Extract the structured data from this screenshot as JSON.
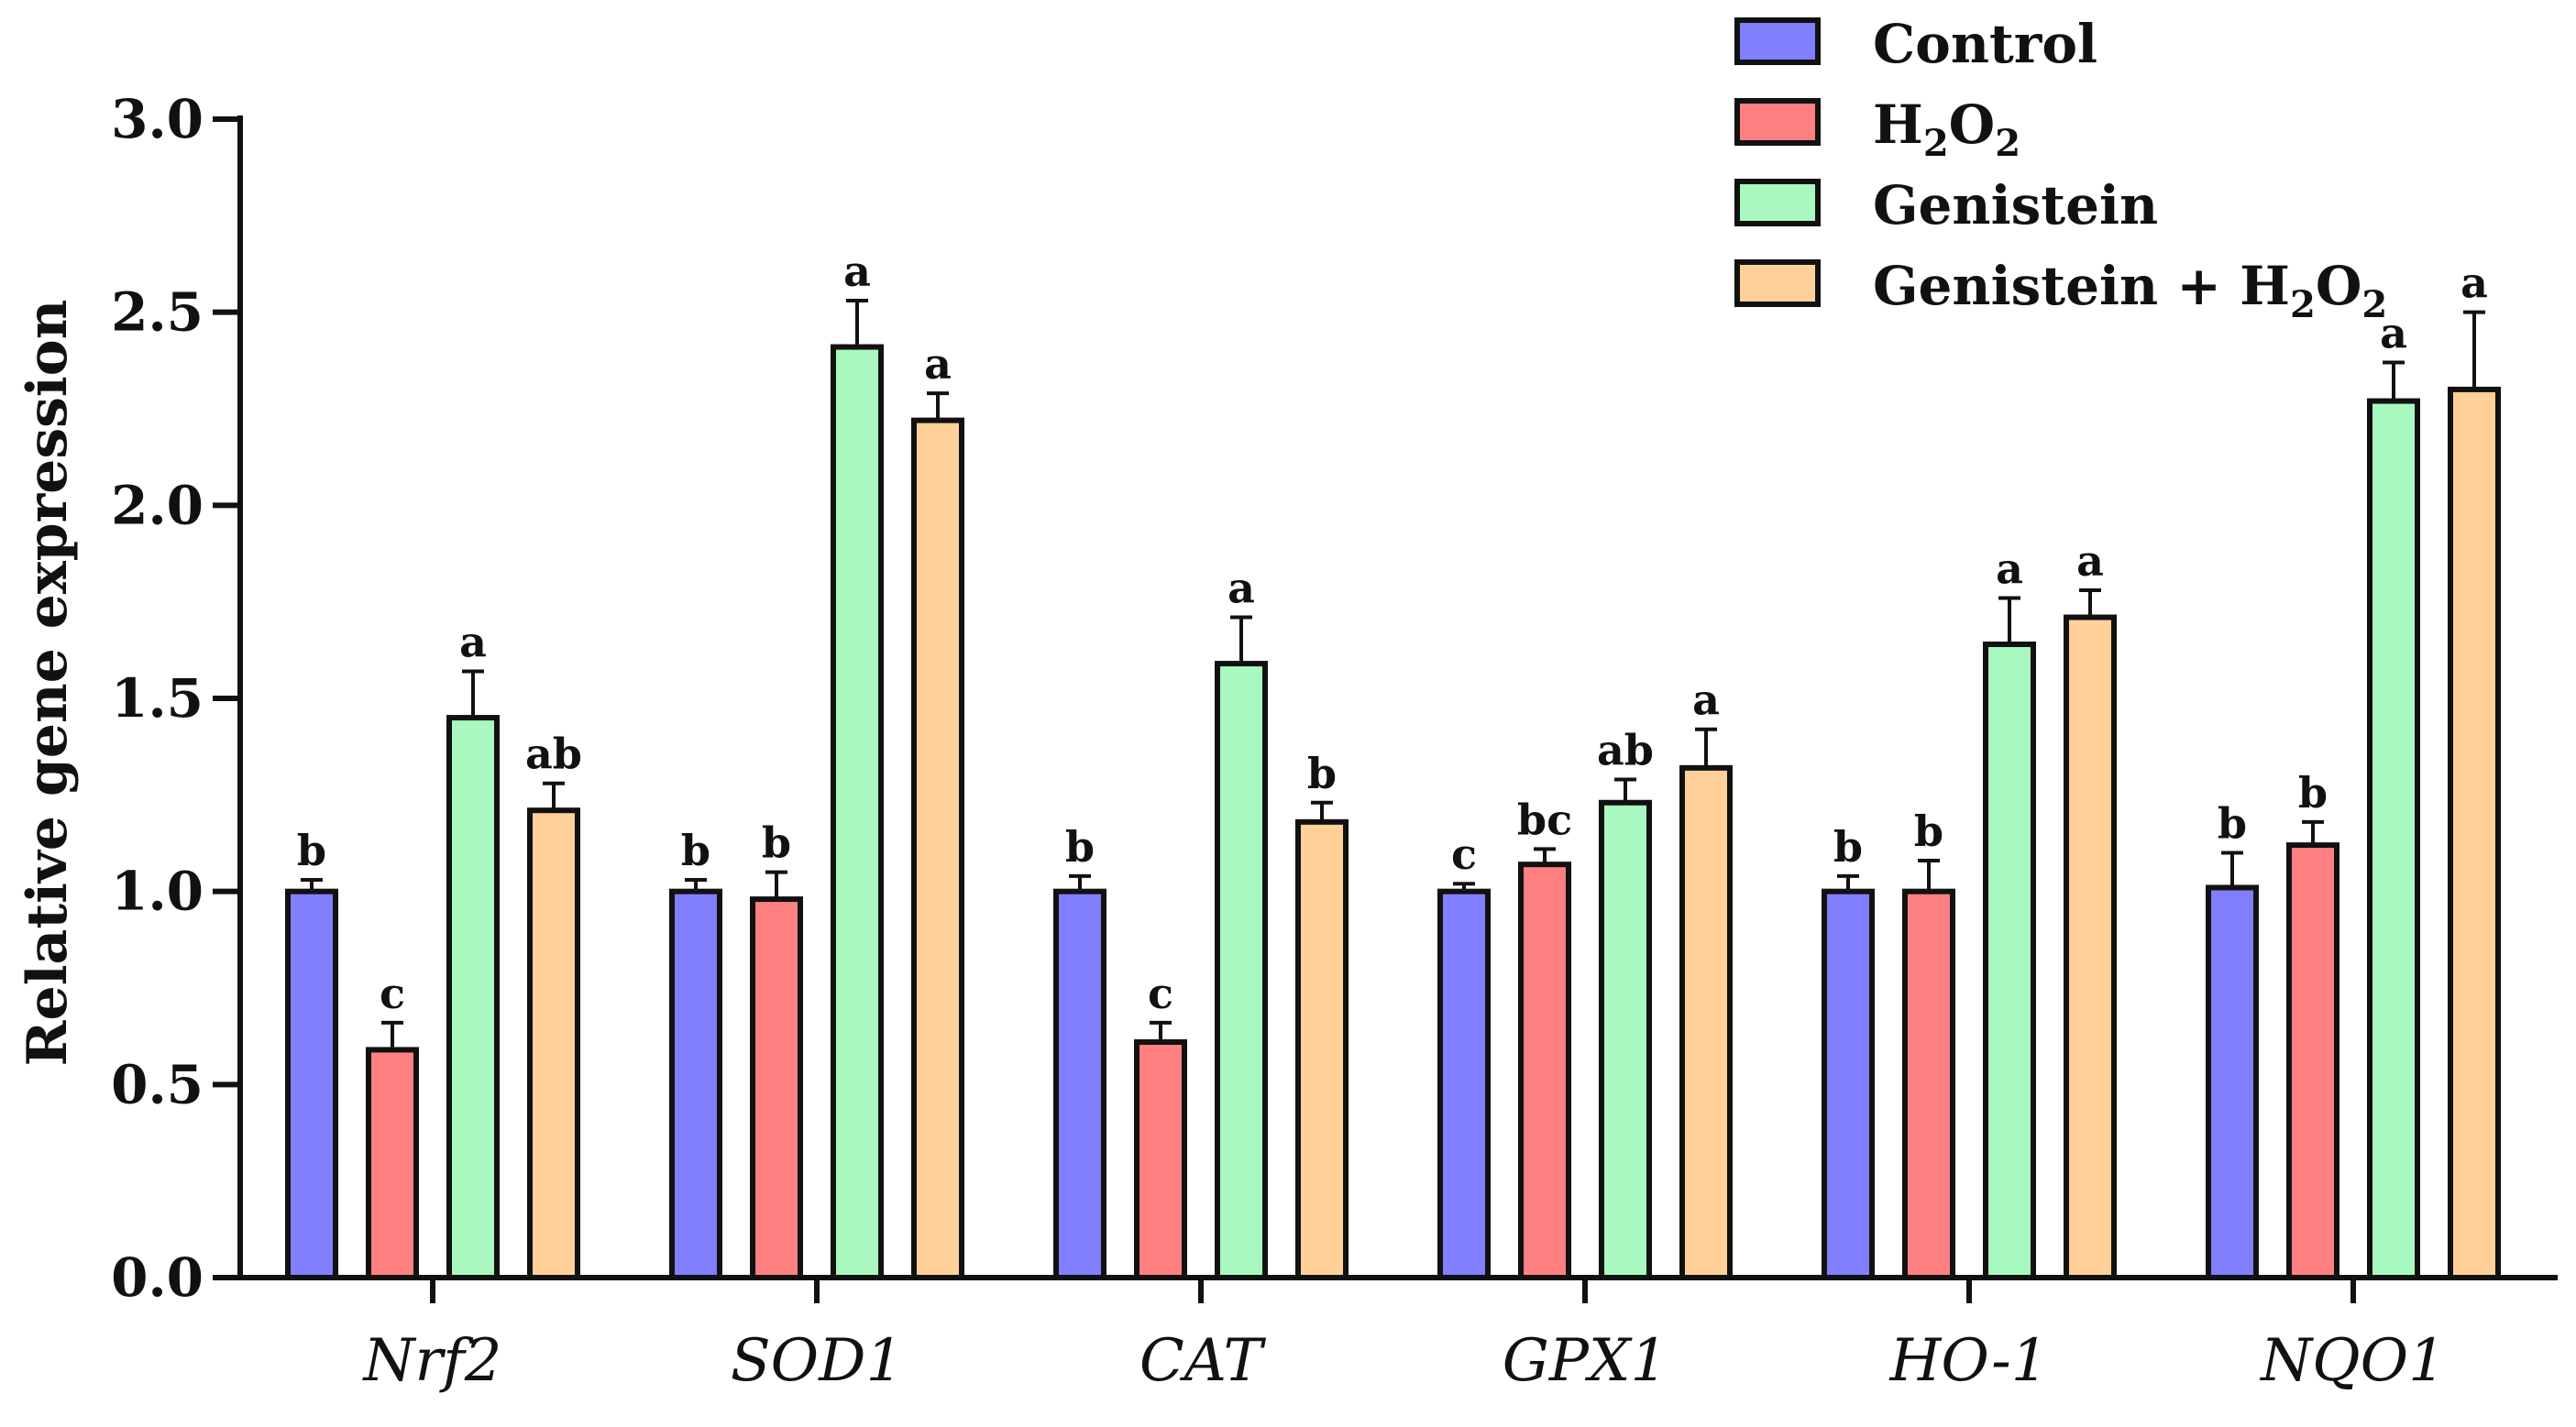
{
  "chart_data": {
    "type": "bar",
    "title": "",
    "xlabel": "",
    "ylabel": "Relative gene expression",
    "ylim": [
      0,
      3.0
    ],
    "yticks": [
      "0.0",
      "0.5",
      "1.0",
      "1.5",
      "2.0",
      "2.5",
      "3.0"
    ],
    "categories": [
      "Nrf2",
      "SOD1",
      "CAT",
      "GPX1",
      "HO-1",
      "NQO1"
    ],
    "legend_position": "top-right",
    "series": [
      {
        "name": "Control",
        "legend_main": "Control",
        "legend_sub": "",
        "legend_suffix": "",
        "color": "#8080ff",
        "values": [
          1.0,
          1.0,
          1.0,
          1.0,
          1.0,
          1.01
        ],
        "errors": [
          0.03,
          0.03,
          0.04,
          0.02,
          0.04,
          0.09
        ],
        "letters": [
          "b",
          "b",
          "b",
          "c",
          "b",
          "b"
        ]
      },
      {
        "name": "H2O2",
        "legend_main": "H",
        "legend_sub": "2",
        "legend_suffix": "O",
        "legend_sub2": "2",
        "color": "#ff8080",
        "values": [
          0.59,
          0.98,
          0.61,
          1.07,
          1.0,
          1.12
        ],
        "errors": [
          0.07,
          0.07,
          0.05,
          0.04,
          0.08,
          0.06
        ],
        "letters": [
          "c",
          "b",
          "c",
          "bc",
          "b",
          "b"
        ]
      },
      {
        "name": "Genistein",
        "legend_main": "Genistein",
        "legend_sub": "",
        "legend_suffix": "",
        "color": "#a8f8c0",
        "values": [
          1.45,
          2.41,
          1.59,
          1.23,
          1.64,
          2.27
        ],
        "errors": [
          0.12,
          0.12,
          0.12,
          0.06,
          0.12,
          0.1
        ],
        "letters": [
          "a",
          "a",
          "a",
          "ab",
          "a",
          "a"
        ]
      },
      {
        "name": "Genistein + H2O2",
        "legend_main": "Genistein + H",
        "legend_sub": "2",
        "legend_suffix": "O",
        "legend_sub2": "2",
        "color": "#ffd098",
        "values": [
          1.21,
          2.22,
          1.18,
          1.32,
          1.71,
          2.3
        ],
        "errors": [
          0.07,
          0.07,
          0.05,
          0.1,
          0.07,
          0.2
        ],
        "letters": [
          "ab",
          "a",
          "b",
          "a",
          "a",
          "a"
        ]
      }
    ]
  }
}
